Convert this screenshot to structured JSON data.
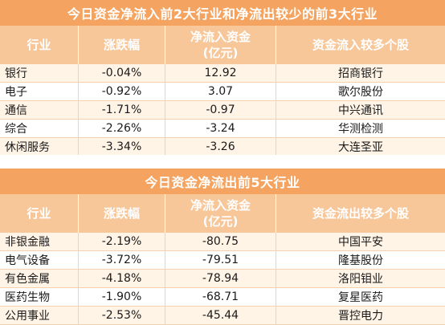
{
  "top_table": {
    "title": "今日资金净流入前2大行业和净流出较少的前3大行业",
    "headers": {
      "industry": "行业",
      "change": "涨跌幅",
      "flow_line1": "净流入资金",
      "flow_line2": "(亿元)",
      "stock": "资金流入较多个股"
    },
    "rows": [
      {
        "industry": "银行",
        "change": "-0.04%",
        "flow": "12.92",
        "stock": "招商银行"
      },
      {
        "industry": "电子",
        "change": "-0.92%",
        "flow": "3.07",
        "stock": "歌尔股份"
      },
      {
        "industry": "通信",
        "change": "-1.71%",
        "flow": "-0.97",
        "stock": "中兴通讯"
      },
      {
        "industry": "综合",
        "change": "-2.26%",
        "flow": "-3.24",
        "stock": "华测检测"
      },
      {
        "industry": "休闲服务",
        "change": "-3.34%",
        "flow": "-3.26",
        "stock": "大连圣亚"
      }
    ]
  },
  "bottom_table": {
    "title": "今日资金净流出前5大行业",
    "headers": {
      "industry": "行业",
      "change": "涨跌幅",
      "flow_line1": "净流入资金",
      "flow_line2": "(亿元)",
      "stock": "资金流出较多个股"
    },
    "rows": [
      {
        "industry": "非银金融",
        "change": "-2.19%",
        "flow": "-80.75",
        "stock": "中国平安"
      },
      {
        "industry": "电气设备",
        "change": "-3.72%",
        "flow": "-79.51",
        "stock": "隆基股份"
      },
      {
        "industry": "有色金属",
        "change": "-4.18%",
        "flow": "-78.94",
        "stock": "洛阳钼业"
      },
      {
        "industry": "医药生物",
        "change": "-1.90%",
        "flow": "-68.71",
        "stock": "复星医药"
      },
      {
        "industry": "公用事业",
        "change": "-2.53%",
        "flow": "-45.44",
        "stock": "晋控电力"
      }
    ]
  },
  "colors": {
    "title_bg": "#f4a460",
    "header_bg": "#f7c79a",
    "odd_row_bg": "#fff4e6"
  }
}
